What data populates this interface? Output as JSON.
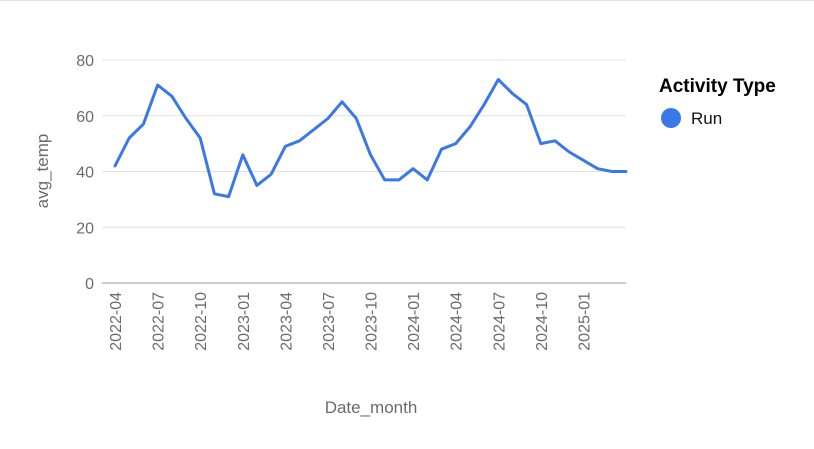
{
  "chart_data": {
    "type": "line",
    "xlabel": "Date_month",
    "ylabel": "avg_temp",
    "ylim": [
      0,
      80
    ],
    "yticks": [
      0,
      20,
      40,
      60,
      80
    ],
    "xlim": [
      "2022-04",
      "2025-04"
    ],
    "xtick_labels": [
      "2022-04",
      "2022-07",
      "2022-10",
      "2023-01",
      "2023-04",
      "2023-07",
      "2023-10",
      "2024-01",
      "2024-04",
      "2024-07",
      "2024-10",
      "2025-01"
    ],
    "grid": true,
    "legend": {
      "title": "Activity Type",
      "position": "right"
    },
    "series": [
      {
        "name": "Run",
        "color": "#3b78e7",
        "x": [
          "2022-04",
          "2022-05",
          "2022-06",
          "2022-07",
          "2022-08",
          "2022-09",
          "2022-10",
          "2022-11",
          "2022-12",
          "2023-01",
          "2023-02",
          "2023-03",
          "2023-04",
          "2023-05",
          "2023-06",
          "2023-07",
          "2023-08",
          "2023-09",
          "2023-10",
          "2023-11",
          "2023-12",
          "2024-01",
          "2024-02",
          "2024-03",
          "2024-04",
          "2024-05",
          "2024-06",
          "2024-07",
          "2024-08",
          "2024-09",
          "2024-10",
          "2024-11",
          "2024-12",
          "2025-01",
          "2025-02",
          "2025-03",
          "2025-04"
        ],
        "values": [
          42,
          52,
          57,
          71,
          67,
          59,
          52,
          32,
          31,
          46,
          35,
          39,
          49,
          51,
          55,
          59,
          65,
          59,
          46,
          37,
          37,
          41,
          37,
          48,
          50,
          56,
          64,
          73,
          68,
          64,
          50,
          51,
          47,
          44,
          41,
          40,
          40
        ]
      }
    ]
  }
}
